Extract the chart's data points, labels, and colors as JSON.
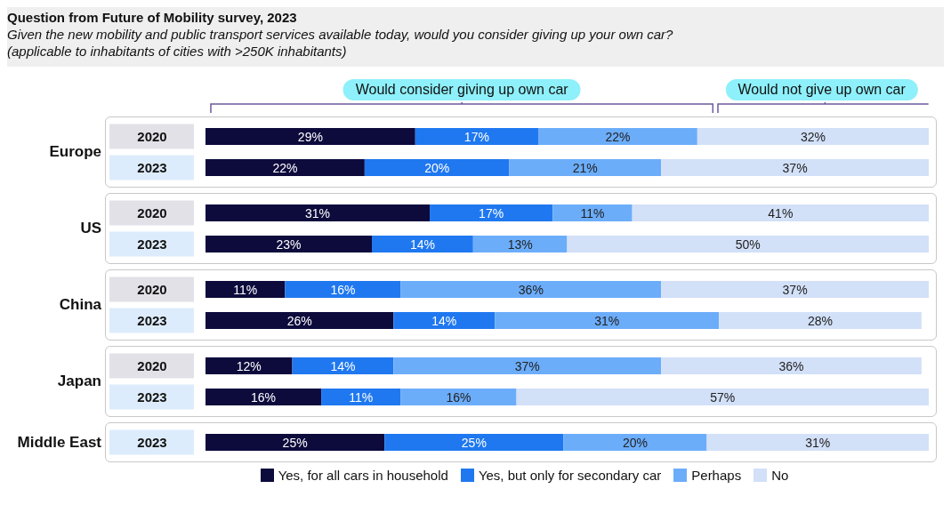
{
  "chart_data": [
    {
      "type": "bar",
      "orientation": "horizontal",
      "stacked": true,
      "title": "Europe",
      "categories": [
        "2020",
        "2023"
      ],
      "series": [
        {
          "color": "#0d0a3c",
          "values": [
            29,
            22
          ],
          "value_labels": [
            "29%",
            "22%"
          ]
        },
        {
          "color": "#1f78f0",
          "values": [
            17,
            20
          ],
          "value_labels": [
            "17%",
            "20%"
          ]
        },
        {
          "color": "#6cadfa",
          "values": [
            22,
            21
          ],
          "value_labels": [
            "22%",
            "21%"
          ]
        },
        {
          "color": "#d2e0f8",
          "values": [
            32,
            37
          ],
          "value_labels": [
            "32%",
            "37%"
          ]
        }
      ],
      "annotations": [
        "Question from Future of Mobility survey, 2023",
        "Given the new mobility and public transport services available today, would you consider giving up your own car?",
        "(applicable to inhabitants of cities with >250K inhabitants)",
        "Would consider giving up own car",
        "Would not give up own car"
      ]
    },
    {
      "type": "bar",
      "orientation": "horizontal",
      "stacked": true,
      "title": "US",
      "categories": [
        "2020",
        "2023"
      ],
      "series": [
        {
          "color": "#0d0a3c",
          "values": [
            31,
            23
          ],
          "value_labels": [
            "31%",
            "23%"
          ]
        },
        {
          "color": "#1f78f0",
          "values": [
            17,
            14
          ],
          "value_labels": [
            "17%",
            "14%"
          ]
        },
        {
          "color": "#6cadfa",
          "values": [
            11,
            13
          ],
          "value_labels": [
            "11%",
            "13%"
          ]
        },
        {
          "color": "#d2e0f8",
          "values": [
            41,
            50
          ],
          "value_labels": [
            "41%",
            "50%"
          ]
        }
      ]
    },
    {
      "type": "bar",
      "orientation": "horizontal",
      "stacked": true,
      "title": "China",
      "categories": [
        "2020",
        "2023"
      ],
      "series": [
        {
          "color": "#0d0a3c",
          "values": [
            11,
            26
          ],
          "value_labels": [
            "11%",
            "26%"
          ]
        },
        {
          "color": "#1f78f0",
          "values": [
            16,
            14
          ],
          "value_labels": [
            "16%",
            "14%"
          ]
        },
        {
          "color": "#6cadfa",
          "values": [
            36,
            31
          ],
          "value_labels": [
            "36%",
            "31%"
          ]
        },
        {
          "color": "#d2e0f8",
          "values": [
            37,
            28
          ],
          "value_labels": [
            "37%",
            "28%"
          ]
        }
      ]
    },
    {
      "type": "bar",
      "orientation": "horizontal",
      "stacked": true,
      "title": "Japan",
      "categories": [
        "2020",
        "2023"
      ],
      "series": [
        {
          "color": "#0d0a3c",
          "values": [
            12,
            16
          ],
          "value_labels": [
            "12%",
            "16%"
          ]
        },
        {
          "color": "#1f78f0",
          "values": [
            14,
            11
          ],
          "value_labels": [
            "14%",
            "11%"
          ]
        },
        {
          "color": "#6cadfa",
          "values": [
            37,
            16
          ],
          "value_labels": [
            "37%",
            "16%"
          ]
        },
        {
          "color": "#d2e0f8",
          "values": [
            36,
            57
          ],
          "value_labels": [
            "36%",
            "57%"
          ]
        }
      ]
    },
    {
      "type": "bar",
      "orientation": "horizontal",
      "stacked": true,
      "title": "Middle East",
      "categories": [
        "2023"
      ],
      "legend": "bottom",
      "series": [
        {
          "name": "Yes, for all cars in household",
          "color": "#0d0a3c",
          "values": [
            25
          ],
          "value_labels": [
            "25%"
          ]
        },
        {
          "name": "Yes, but only for secondary car",
          "color": "#1f78f0",
          "values": [
            25
          ],
          "value_labels": [
            "25%"
          ]
        },
        {
          "name": "Perhaps",
          "color": "#6cadfa",
          "values": [
            20
          ],
          "value_labels": [
            "20%"
          ]
        },
        {
          "name": "No",
          "color": "#d2e0f8",
          "values": [
            31
          ],
          "value_labels": [
            "31%"
          ]
        }
      ]
    }
  ]
}
